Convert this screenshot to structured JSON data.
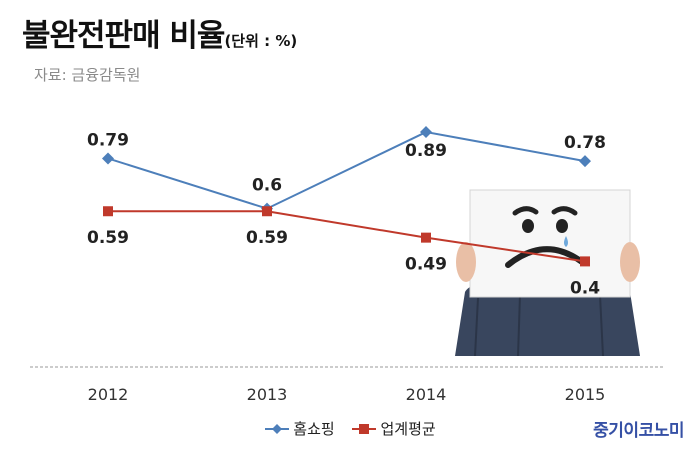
{
  "header": {
    "title": "불완전판매 비율",
    "unit": "(단위 : %)",
    "source": "자료: 금융감독원"
  },
  "brand": "중기이코노미",
  "colors": {
    "home_shopping": "#4d7fba",
    "industry_avg": "#c0392b",
    "baseline": "#999999"
  },
  "illustration": "person-holding-sad-face-sign",
  "chart_data": {
    "type": "line",
    "categories": [
      "2012",
      "2013",
      "2014",
      "2015"
    ],
    "series": [
      {
        "name": "홈쇼핑",
        "values": [
          0.79,
          0.6,
          0.89,
          0.78
        ],
        "labels": [
          "0.79",
          "0.6",
          "0.89",
          "0.78"
        ],
        "marker": "diamond"
      },
      {
        "name": "업계평균",
        "values": [
          0.59,
          0.59,
          0.49,
          0.4
        ],
        "labels": [
          "0.59",
          "0.59",
          "0.49",
          "0.4"
        ],
        "marker": "square"
      }
    ],
    "title": "불완전판매 비율",
    "xlabel": "",
    "ylabel": "",
    "ylim": [
      0,
      1
    ],
    "grid": false,
    "legend": "bottom"
  }
}
